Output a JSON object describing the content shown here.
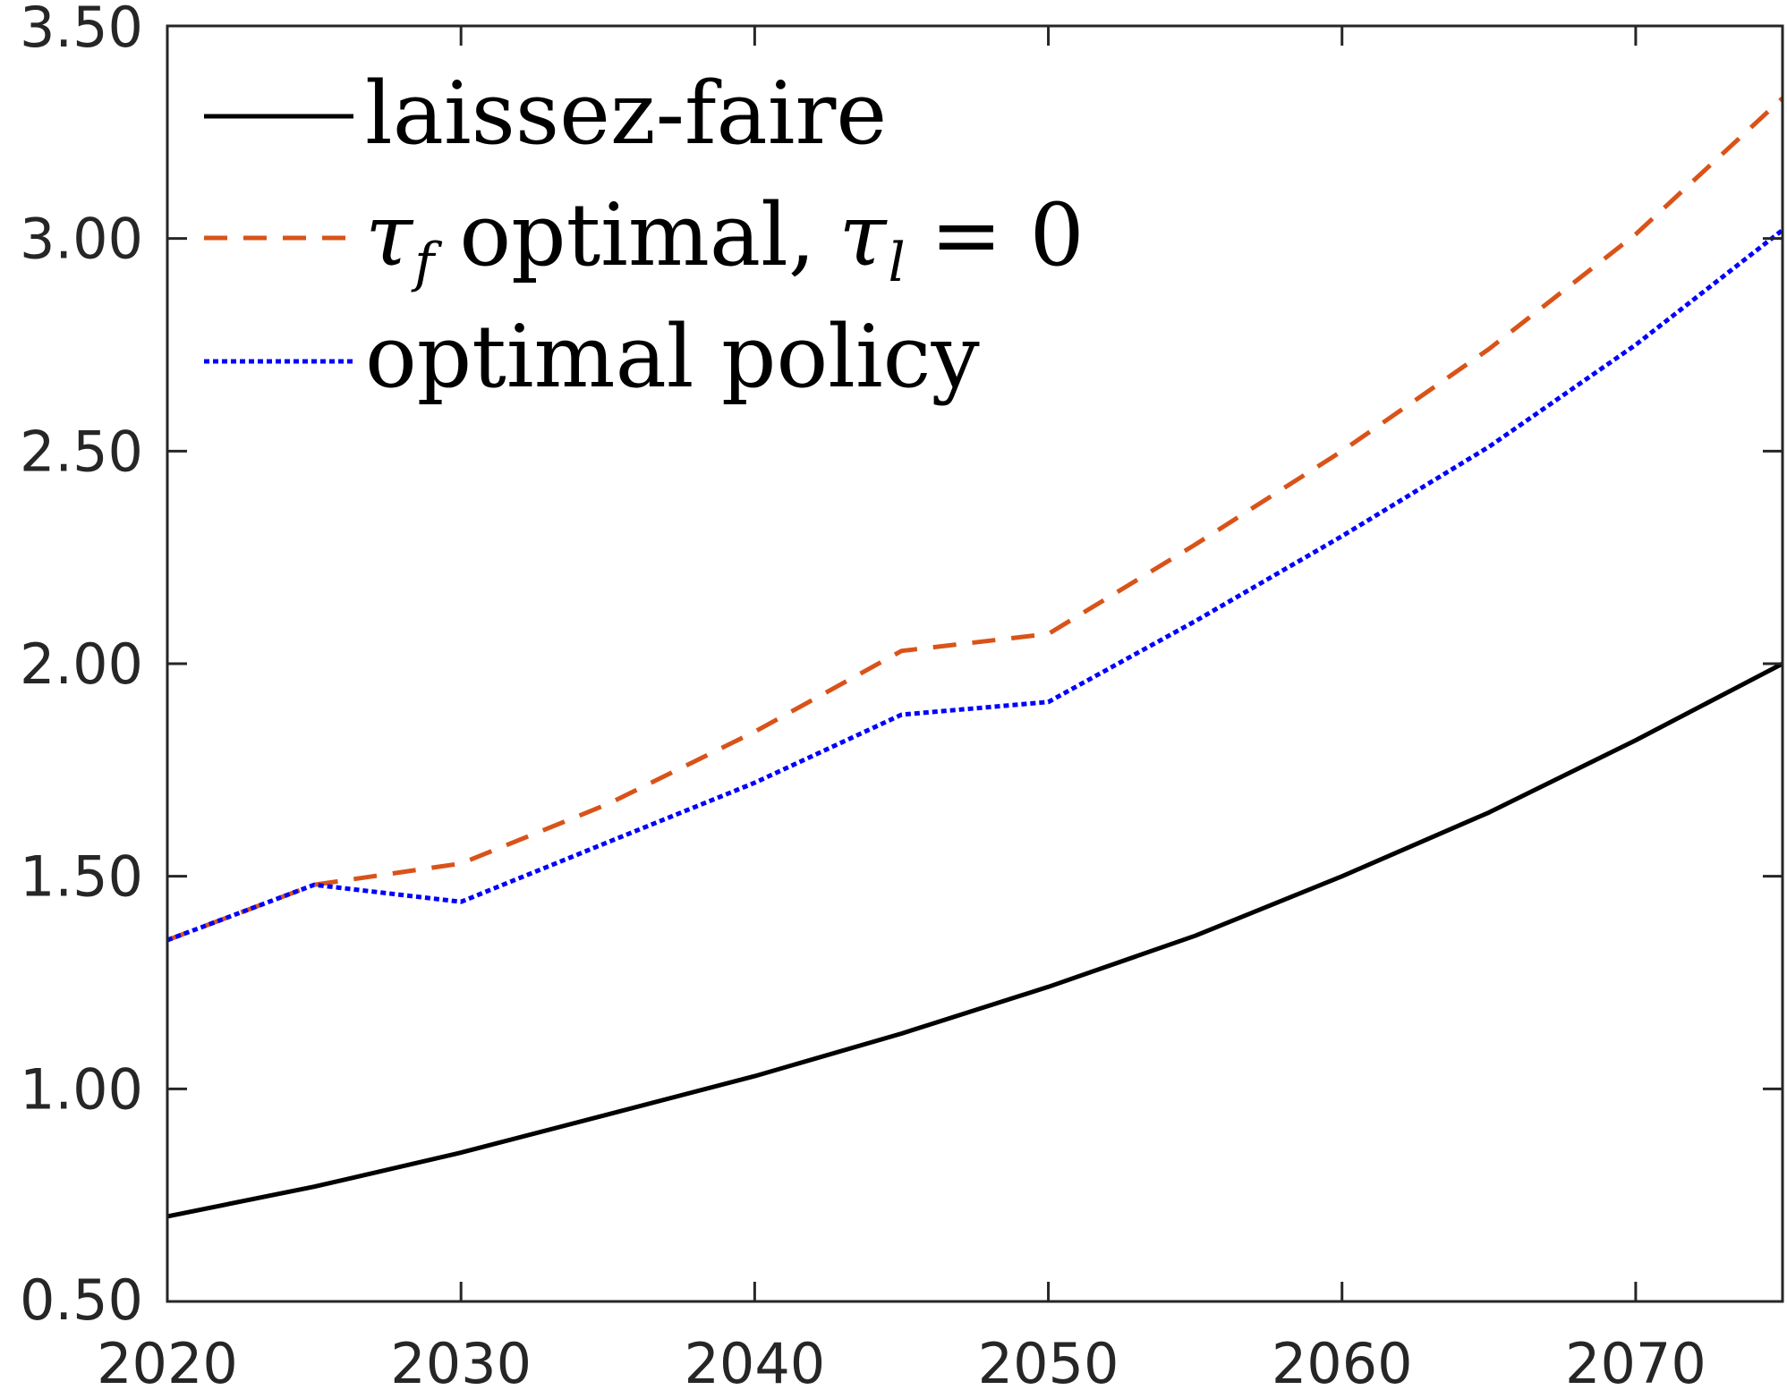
{
  "chart_data": {
    "type": "line",
    "title": "",
    "xlabel": "",
    "ylabel": "",
    "xlim": [
      2020,
      2075
    ],
    "ylim": [
      0.5,
      3.5
    ],
    "grid": false,
    "legend_position": "top-left",
    "x_ticks": [
      2020,
      2030,
      2040,
      2050,
      2060,
      2070
    ],
    "x_tick_labels": [
      "2020",
      "2030",
      "2040",
      "2050",
      "2060",
      "2070"
    ],
    "y_ticks": [
      0.5,
      1.0,
      1.5,
      2.0,
      2.5,
      3.0,
      3.5
    ],
    "y_tick_labels": [
      "0.50",
      "1.00",
      "1.50",
      "2.00",
      "2.50",
      "3.00",
      "3.50"
    ],
    "x": [
      2020,
      2025,
      2030,
      2035,
      2040,
      2045,
      2050,
      2055,
      2060,
      2065,
      2070,
      2075
    ],
    "series": [
      {
        "name": "laissez-faire",
        "color": "#000000",
        "dash": "solid",
        "values": [
          0.7,
          0.77,
          0.85,
          0.94,
          1.03,
          1.13,
          1.24,
          1.36,
          1.5,
          1.65,
          1.82,
          2.0
        ]
      },
      {
        "name": "τf optimal, τl = 0",
        "color": "#d95319",
        "dash": "dashed",
        "values": [
          1.35,
          1.48,
          1.53,
          1.67,
          1.84,
          2.03,
          2.07,
          2.28,
          2.5,
          2.74,
          3.01,
          3.33
        ]
      },
      {
        "name": "optimal policy",
        "color": "#0000ff",
        "dash": "dotted",
        "values": [
          1.35,
          1.48,
          1.44,
          1.58,
          1.72,
          1.88,
          1.91,
          2.1,
          2.3,
          2.51,
          2.75,
          3.02
        ]
      }
    ]
  },
  "legend": {
    "laissez_faire": "laissez-faire",
    "tau_f_word": "optimal,",
    "tau": "τ",
    "sub_f": "f",
    "sub_l": "l",
    "equals_zero": "= 0",
    "optimal_policy": "optimal policy"
  }
}
